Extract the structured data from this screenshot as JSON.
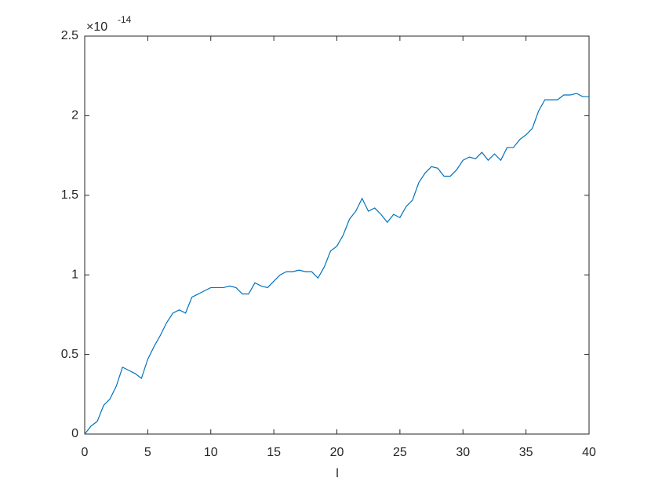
{
  "chart_data": {
    "type": "line",
    "xlabel": "l",
    "exponent_base": "×10",
    "exponent": "-14",
    "x": [
      0,
      0.5,
      1,
      1.5,
      2,
      2.5,
      3,
      3.5,
      4,
      4.5,
      5,
      5.5,
      6,
      6.5,
      7,
      7.5,
      8,
      8.5,
      9,
      9.5,
      10,
      10.5,
      11,
      11.5,
      12,
      12.5,
      13,
      13.5,
      14,
      14.5,
      15,
      15.5,
      16,
      16.5,
      17,
      17.5,
      18,
      18.5,
      19,
      19.5,
      20,
      20.5,
      21,
      21.5,
      22,
      22.5,
      23,
      23.5,
      24,
      24.5,
      25,
      25.5,
      26,
      26.5,
      27,
      27.5,
      28,
      28.5,
      29,
      29.5,
      30,
      30.5,
      31,
      31.5,
      32,
      32.5,
      33,
      33.5,
      34,
      34.5,
      35,
      35.5,
      36,
      36.5,
      37,
      37.5,
      38,
      38.5,
      39,
      39.5,
      40
    ],
    "series": [
      {
        "color": "#0072bd",
        "values": [
          0,
          0.05,
          0.08,
          0.18,
          0.22,
          0.3,
          0.42,
          0.4,
          0.38,
          0.35,
          0.47,
          0.55,
          0.62,
          0.7,
          0.76,
          0.78,
          0.76,
          0.86,
          0.88,
          0.9,
          0.92,
          0.92,
          0.92,
          0.93,
          0.92,
          0.88,
          0.88,
          0.95,
          0.93,
          0.92,
          0.96,
          1.0,
          1.02,
          1.02,
          1.03,
          1.02,
          1.02,
          0.98,
          1.05,
          1.15,
          1.18,
          1.25,
          1.35,
          1.4,
          1.48,
          1.4,
          1.42,
          1.38,
          1.33,
          1.38,
          1.36,
          1.43,
          1.47,
          1.58,
          1.64,
          1.68,
          1.67,
          1.62,
          1.62,
          1.66,
          1.72,
          1.74,
          1.73,
          1.77,
          1.72,
          1.76,
          1.72,
          1.8,
          1.8,
          1.85,
          1.88,
          1.92,
          2.03,
          2.1,
          2.1,
          2.1,
          2.13,
          2.13,
          2.14,
          2.12,
          2.12
        ]
      }
    ],
    "xlim": [
      0,
      40
    ],
    "xticks": [
      0,
      5,
      10,
      15,
      20,
      25,
      30,
      35,
      40
    ],
    "ylim": [
      0,
      2.5
    ],
    "yticks": [
      0,
      0.5,
      1,
      1.5,
      2,
      2.5
    ]
  }
}
